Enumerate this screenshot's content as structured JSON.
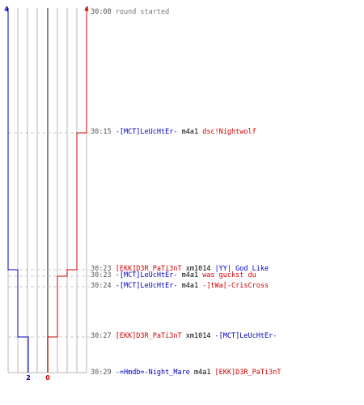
{
  "score_top": {
    "blue": "4",
    "red": "4"
  },
  "score_bottom": {
    "blue": "2",
    "red": "0"
  },
  "colors": {
    "blue": "#0000c0",
    "red": "#d00000",
    "grid": "#b4b4b4",
    "dash": "#c8c8c8",
    "text": "#000000",
    "time": "#555555"
  },
  "events": [
    {
      "time": "30:08",
      "parts": [
        {
          "text": "round started",
          "color": "#777777"
        }
      ]
    },
    {
      "time": "30:15",
      "parts": [
        {
          "text": "-[MCT]LeUcHtEr-",
          "color": "#0000c0"
        },
        {
          "text": "m4a1",
          "color": "#000000"
        },
        {
          "text": "dsc!Nightwolf",
          "color": "#d00000"
        }
      ]
    },
    {
      "time": "30:23",
      "parts": [
        {
          "text": "[EKK]D3R_PaTi3nT",
          "color": "#d00000"
        },
        {
          "text": "xm1014",
          "color": "#000000"
        },
        {
          "text": "|YY| God Like",
          "color": "#0000c0"
        }
      ]
    },
    {
      "time": "30:23",
      "parts": [
        {
          "text": "-[MCT]LeUcHtEr-",
          "color": "#0000c0"
        },
        {
          "text": "m4a1",
          "color": "#000000"
        },
        {
          "text": "was guckst du",
          "color": "#d00000"
        }
      ]
    },
    {
      "time": "30:24",
      "parts": [
        {
          "text": "-[MCT]LeUcHtEr-",
          "color": "#0000c0"
        },
        {
          "text": "m4a1",
          "color": "#000000"
        },
        {
          "text": "-]tWa[-CrisCross",
          "color": "#d00000"
        }
      ]
    },
    {
      "time": "30:27",
      "parts": [
        {
          "text": "[EKK]D3R_PaTi3nT",
          "color": "#d00000"
        },
        {
          "text": "xm1014",
          "color": "#000000"
        },
        {
          "text": "-[MCT]LeUcHtEr-",
          "color": "#0000c0"
        }
      ]
    },
    {
      "time": "30:29",
      "parts": [
        {
          "text": "-=Hmdb=-Night_Mare",
          "color": "#0000c0"
        },
        {
          "text": "m4a1",
          "color": "#000000"
        },
        {
          "text": "[EKK]D3R_PaTi3nT",
          "color": "#d00000"
        }
      ]
    }
  ]
}
